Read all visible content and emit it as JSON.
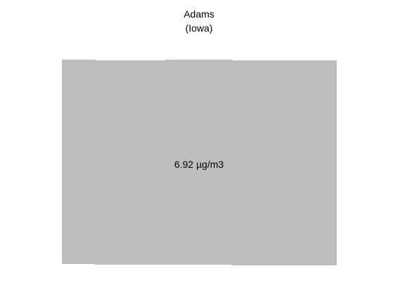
{
  "title": {
    "name": "Adams",
    "state": "(Iowa)"
  },
  "region": {
    "value_label": "6.92 µg/m3",
    "fill_color": "#bebebe"
  }
}
